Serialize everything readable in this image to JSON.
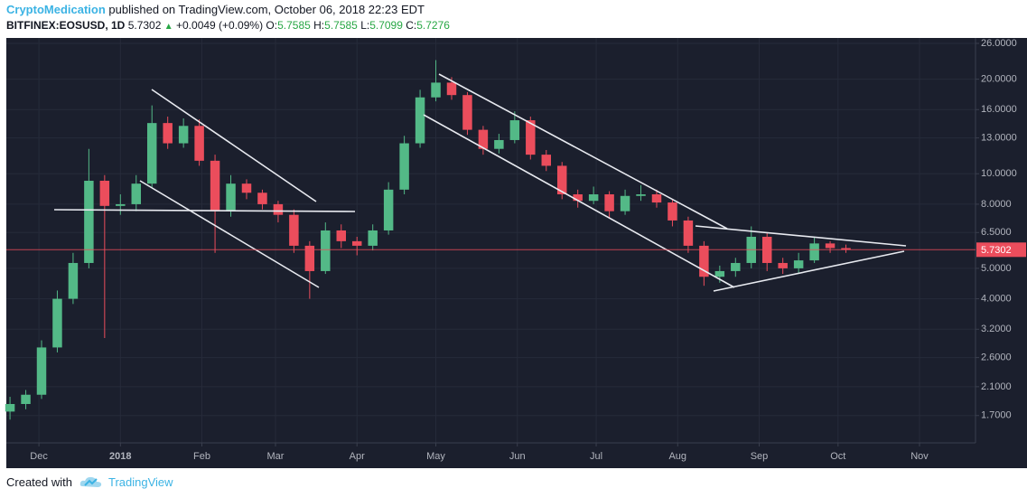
{
  "header": {
    "author": "CryptoMedication",
    "published": "published on TradingView.com, October 06, 2018 22:23 EDT",
    "symbol": "BITFINEX:EOSUSD, 1D",
    "change": "+0.0049 (+0.09%)",
    "ohlc": [
      {
        "label": "O:",
        "value": "5.7585"
      },
      {
        "label": "H:",
        "value": "5.7585"
      },
      {
        "label": "L:",
        "value": "5.7099"
      },
      {
        "label": "C:",
        "value": "5.7276"
      }
    ]
  },
  "footer": {
    "created_with": "Created with",
    "brand": "TradingView"
  },
  "chart_data": {
    "type": "candlestick",
    "log_scale": true,
    "grid": true,
    "up_color": "#53b987",
    "down_color": "#eb4d5c",
    "last_price": 5.7302,
    "last_price_color": "#eb4d5c",
    "xlim": [
      -12.4,
      356.3
    ],
    "ylim": [
      1.41,
      27.05
    ],
    "xticks": [
      {
        "value": 0,
        "label": "Dec"
      },
      {
        "value": 31,
        "label": "2018"
      },
      {
        "value": 62,
        "label": "Feb"
      },
      {
        "value": 90,
        "label": "Mar"
      },
      {
        "value": 121,
        "label": "Apr"
      },
      {
        "value": 151,
        "label": "May"
      },
      {
        "value": 182,
        "label": "Jun"
      },
      {
        "value": 212,
        "label": "Jul"
      },
      {
        "value": 243,
        "label": "Aug"
      },
      {
        "value": 274,
        "label": "Sep"
      },
      {
        "value": 304,
        "label": "Oct"
      },
      {
        "value": 335,
        "label": "Nov"
      }
    ],
    "yticks": [
      {
        "value": 26,
        "label": "26.0000"
      },
      {
        "value": 20,
        "label": "20.0000"
      },
      {
        "value": 16,
        "label": "16.0000"
      },
      {
        "value": 13,
        "label": "13.0000"
      },
      {
        "value": 10,
        "label": "10.0000"
      },
      {
        "value": 8,
        "label": "8.0000"
      },
      {
        "value": 6.5,
        "label": "6.5000"
      },
      {
        "value": 5,
        "label": "5.0000"
      },
      {
        "value": 4,
        "label": "4.0000"
      },
      {
        "value": 3.2,
        "label": "3.2000"
      },
      {
        "value": 2.6,
        "label": "2.6000"
      },
      {
        "value": 2.1,
        "label": "2.1000"
      },
      {
        "value": 1.7,
        "label": "1.7000"
      }
    ],
    "x": [
      -11,
      -5,
      1,
      7,
      13,
      19,
      25,
      31,
      37,
      43,
      49,
      55,
      61,
      67,
      73,
      79,
      85,
      91,
      97,
      103,
      109,
      115,
      121,
      127,
      133,
      139,
      145,
      151,
      157,
      163,
      169,
      175,
      181,
      187,
      193,
      199,
      205,
      211,
      217,
      223,
      229,
      235,
      241,
      247,
      253,
      259,
      265,
      271,
      277,
      283,
      289,
      295,
      301,
      307
    ],
    "open": [
      1.75,
      1.85,
      1.98,
      2.8,
      4.0,
      5.2,
      9.5,
      7.9,
      8.0,
      9.3,
      14.5,
      12.5,
      14.2,
      11.0,
      7.6,
      9.3,
      8.7,
      8.0,
      7.4,
      5.9,
      4.9,
      6.6,
      6.1,
      5.9,
      6.6,
      8.9,
      12.5,
      17.5,
      19.5,
      17.8,
      13.8,
      12.0,
      12.8,
      14.8,
      11.5,
      10.6,
      8.6,
      8.2,
      8.6,
      7.6,
      8.5,
      8.6,
      8.1,
      7.1,
      5.9,
      4.7,
      4.9,
      5.2,
      6.3,
      5.2,
      5.0,
      5.3,
      6.0,
      5.8
    ],
    "high": [
      1.95,
      2.05,
      2.95,
      4.25,
      5.6,
      12.0,
      9.9,
      8.6,
      9.9,
      16.5,
      15.2,
      15.0,
      14.9,
      11.5,
      9.9,
      9.6,
      8.9,
      8.2,
      7.7,
      6.1,
      7.0,
      6.9,
      6.3,
      6.9,
      9.4,
      13.2,
      18.5,
      23.0,
      20.3,
      18.2,
      14.2,
      13.4,
      15.8,
      15.2,
      11.9,
      10.9,
      8.9,
      9.1,
      8.8,
      8.9,
      9.2,
      8.9,
      8.3,
      7.3,
      6.1,
      5.1,
      5.4,
      6.8,
      6.5,
      5.4,
      5.6,
      6.3,
      6.1,
      5.95
    ],
    "low": [
      1.65,
      1.78,
      1.92,
      2.7,
      3.85,
      5.0,
      3.0,
      7.4,
      7.6,
      9.0,
      12.0,
      12.1,
      10.6,
      5.6,
      7.3,
      8.3,
      7.7,
      7.0,
      5.6,
      4.0,
      4.8,
      5.8,
      5.5,
      5.7,
      6.4,
      8.6,
      12.1,
      17.0,
      17.2,
      13.3,
      11.5,
      11.6,
      12.5,
      11.1,
      10.2,
      8.3,
      7.8,
      8.0,
      7.2,
      7.4,
      8.2,
      7.8,
      6.8,
      5.6,
      4.4,
      4.5,
      4.7,
      5.0,
      4.9,
      4.8,
      4.8,
      5.2,
      5.6,
      5.6
    ],
    "close": [
      1.85,
      1.98,
      2.8,
      4.0,
      5.2,
      9.5,
      7.9,
      8.0,
      9.3,
      14.5,
      12.5,
      14.2,
      11.0,
      7.6,
      9.3,
      8.7,
      8.0,
      7.4,
      5.9,
      4.9,
      6.6,
      6.1,
      5.9,
      6.6,
      8.9,
      12.5,
      17.5,
      19.5,
      17.8,
      13.8,
      12.0,
      12.8,
      14.8,
      11.5,
      10.6,
      8.6,
      8.2,
      8.6,
      7.6,
      8.5,
      8.6,
      8.1,
      7.1,
      5.9,
      4.7,
      4.9,
      5.2,
      6.3,
      5.2,
      5.0,
      5.3,
      6.0,
      5.8,
      5.73
    ]
  }
}
